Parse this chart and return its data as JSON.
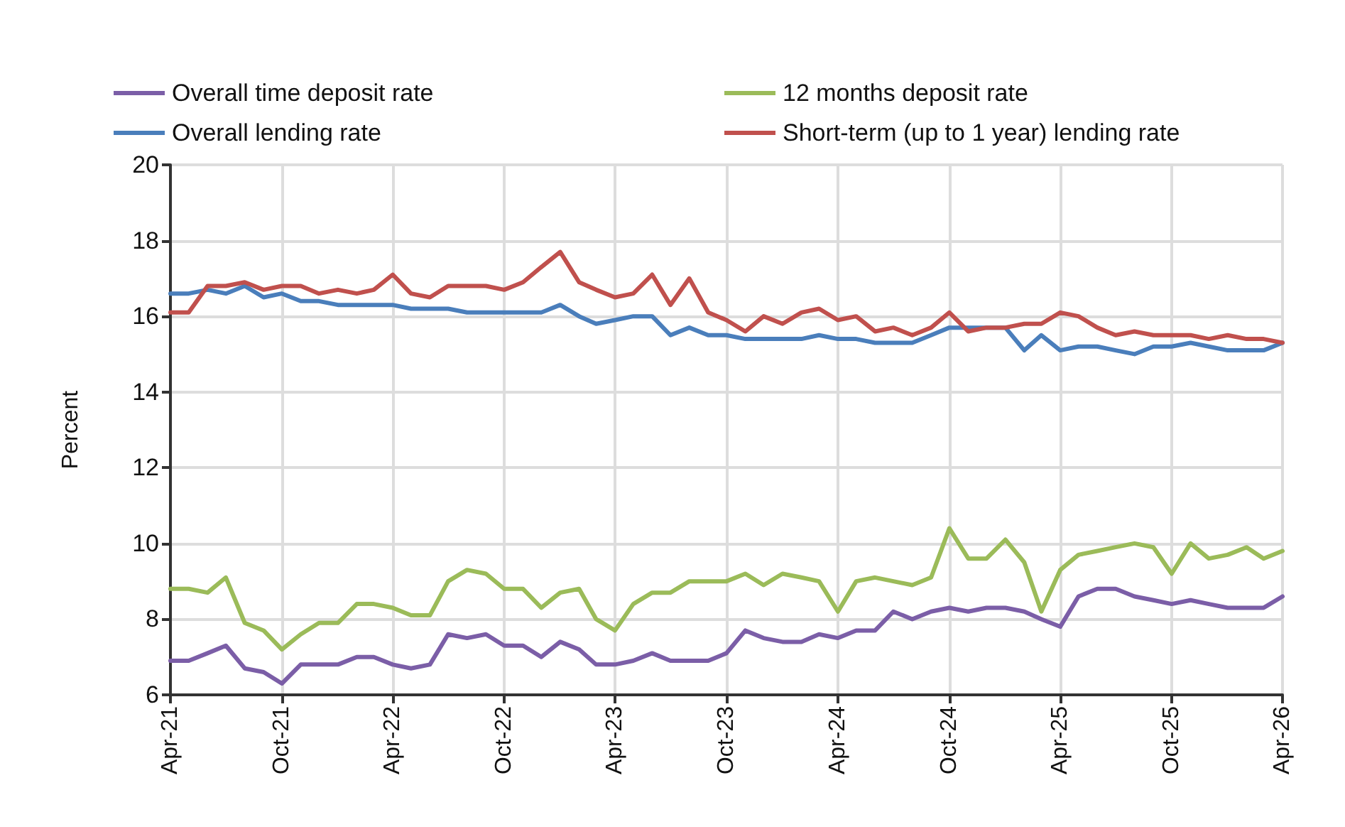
{
  "chart_data": {
    "type": "line",
    "ylabel": "Percent",
    "x": [
      "2021-04",
      "2021-05",
      "2021-06",
      "2021-07",
      "2021-08",
      "2021-09",
      "2021-10",
      "2021-11",
      "2021-12",
      "2022-01",
      "2022-02",
      "2022-03",
      "2022-04",
      "2022-05",
      "2022-06",
      "2022-07",
      "2022-08",
      "2022-09",
      "2022-10",
      "2022-11",
      "2022-12",
      "2023-01",
      "2023-02",
      "2023-03",
      "2023-04",
      "2023-05",
      "2023-06",
      "2023-07",
      "2023-08",
      "2023-09",
      "2023-10",
      "2023-11",
      "2023-12",
      "2024-01",
      "2024-02",
      "2024-03",
      "2024-04",
      "2024-05",
      "2024-06",
      "2024-07",
      "2024-08",
      "2024-09",
      "2024-10",
      "2024-11",
      "2024-12",
      "2025-01",
      "2025-02",
      "2025-03",
      "2025-04",
      "2025-05",
      "2025-06",
      "2025-07",
      "2025-08",
      "2025-09",
      "2025-10",
      "2025-11",
      "2025-12",
      "2026-01",
      "2026-02",
      "2026-03",
      "2026-04"
    ],
    "series": [
      {
        "name": "Overall time deposit rate",
        "color": "#7b5ea7",
        "values": [
          6.9,
          6.9,
          7.1,
          7.3,
          6.7,
          6.6,
          6.3,
          6.8,
          6.8,
          6.8,
          7.0,
          7.0,
          6.8,
          6.7,
          6.8,
          7.6,
          7.5,
          7.6,
          7.3,
          7.3,
          7.0,
          7.4,
          7.2,
          6.8,
          6.8,
          6.9,
          7.1,
          6.9,
          6.9,
          6.9,
          7.1,
          7.7,
          7.5,
          7.4,
          7.4,
          7.6,
          7.5,
          7.7,
          7.7,
          8.2,
          8.0,
          8.2,
          8.3,
          8.2,
          8.3,
          8.3,
          8.2,
          8.0,
          7.8,
          8.6,
          8.8,
          8.8,
          8.6,
          8.5,
          8.4,
          8.5,
          8.4,
          8.3,
          8.3,
          8.3,
          8.6
        ]
      },
      {
        "name": "12 months deposit rate",
        "color": "#9bbb59",
        "values": [
          8.8,
          8.8,
          8.7,
          9.1,
          7.9,
          7.7,
          7.2,
          7.6,
          7.9,
          7.9,
          8.4,
          8.4,
          8.3,
          8.1,
          8.1,
          9.0,
          9.3,
          9.2,
          8.8,
          8.8,
          8.3,
          8.7,
          8.8,
          8.0,
          7.7,
          8.4,
          8.7,
          8.7,
          9.0,
          9.0,
          9.0,
          9.2,
          8.9,
          9.2,
          9.1,
          9.0,
          8.2,
          9.0,
          9.1,
          9.0,
          8.9,
          9.1,
          10.4,
          9.6,
          9.6,
          10.1,
          9.5,
          8.2,
          9.3,
          9.7,
          9.8,
          9.9,
          10.0,
          9.9,
          9.2,
          10.0,
          9.6,
          9.7,
          9.9,
          9.6,
          9.8
        ]
      },
      {
        "name": "Overall lending rate",
        "color": "#4a7ebb",
        "values": [
          16.6,
          16.6,
          16.7,
          16.6,
          16.8,
          16.5,
          16.6,
          16.4,
          16.4,
          16.3,
          16.3,
          16.3,
          16.3,
          16.2,
          16.2,
          16.2,
          16.1,
          16.1,
          16.1,
          16.1,
          16.1,
          16.3,
          16.0,
          15.8,
          15.9,
          16.0,
          16.0,
          15.5,
          15.7,
          15.5,
          15.5,
          15.4,
          15.4,
          15.4,
          15.4,
          15.5,
          15.4,
          15.4,
          15.3,
          15.3,
          15.3,
          15.5,
          15.7,
          15.7,
          15.7,
          15.7,
          15.1,
          15.5,
          15.1,
          15.2,
          15.2,
          15.1,
          15.0,
          15.2,
          15.2,
          15.3,
          15.2,
          15.1,
          15.1,
          15.1,
          15.3
        ]
      },
      {
        "name": "Short-term (up to 1 year) lending rate",
        "color": "#c0504d",
        "values": [
          16.1,
          16.1,
          16.8,
          16.8,
          16.9,
          16.7,
          16.8,
          16.8,
          16.6,
          16.7,
          16.6,
          16.7,
          17.1,
          16.6,
          16.5,
          16.8,
          16.8,
          16.8,
          16.7,
          16.9,
          17.3,
          17.7,
          16.9,
          16.7,
          16.5,
          16.6,
          17.1,
          16.3,
          17.0,
          16.1,
          15.9,
          15.6,
          16.0,
          15.8,
          16.1,
          16.2,
          15.9,
          16.0,
          15.6,
          15.7,
          15.5,
          15.7,
          16.1,
          15.6,
          15.7,
          15.7,
          15.8,
          15.8,
          16.1,
          16.0,
          15.7,
          15.5,
          15.6,
          15.5,
          15.5,
          15.5,
          15.4,
          15.5,
          15.4,
          15.4,
          15.3
        ]
      }
    ],
    "xlim": [
      "2021-04",
      "2026-04"
    ],
    "xticks": [
      {
        "value": "2021-04",
        "label": "Apr-21"
      },
      {
        "value": "2021-10",
        "label": "Oct-21"
      },
      {
        "value": "2022-04",
        "label": "Apr-22"
      },
      {
        "value": "2022-10",
        "label": "Oct-22"
      },
      {
        "value": "2023-04",
        "label": "Apr-23"
      },
      {
        "value": "2023-10",
        "label": "Oct-23"
      },
      {
        "value": "2024-04",
        "label": "Apr-24"
      },
      {
        "value": "2024-10",
        "label": "Oct-24"
      },
      {
        "value": "2025-04",
        "label": "Apr-25"
      },
      {
        "value": "2025-10",
        "label": "Oct-25"
      },
      {
        "value": "2026-04",
        "label": "Apr-26"
      }
    ],
    "ylim": [
      6,
      20
    ],
    "yticks": [
      6,
      8,
      10,
      12,
      14,
      16,
      18,
      20
    ],
    "grid": true,
    "legend": "top",
    "marker": "none",
    "line_style": "solid"
  }
}
